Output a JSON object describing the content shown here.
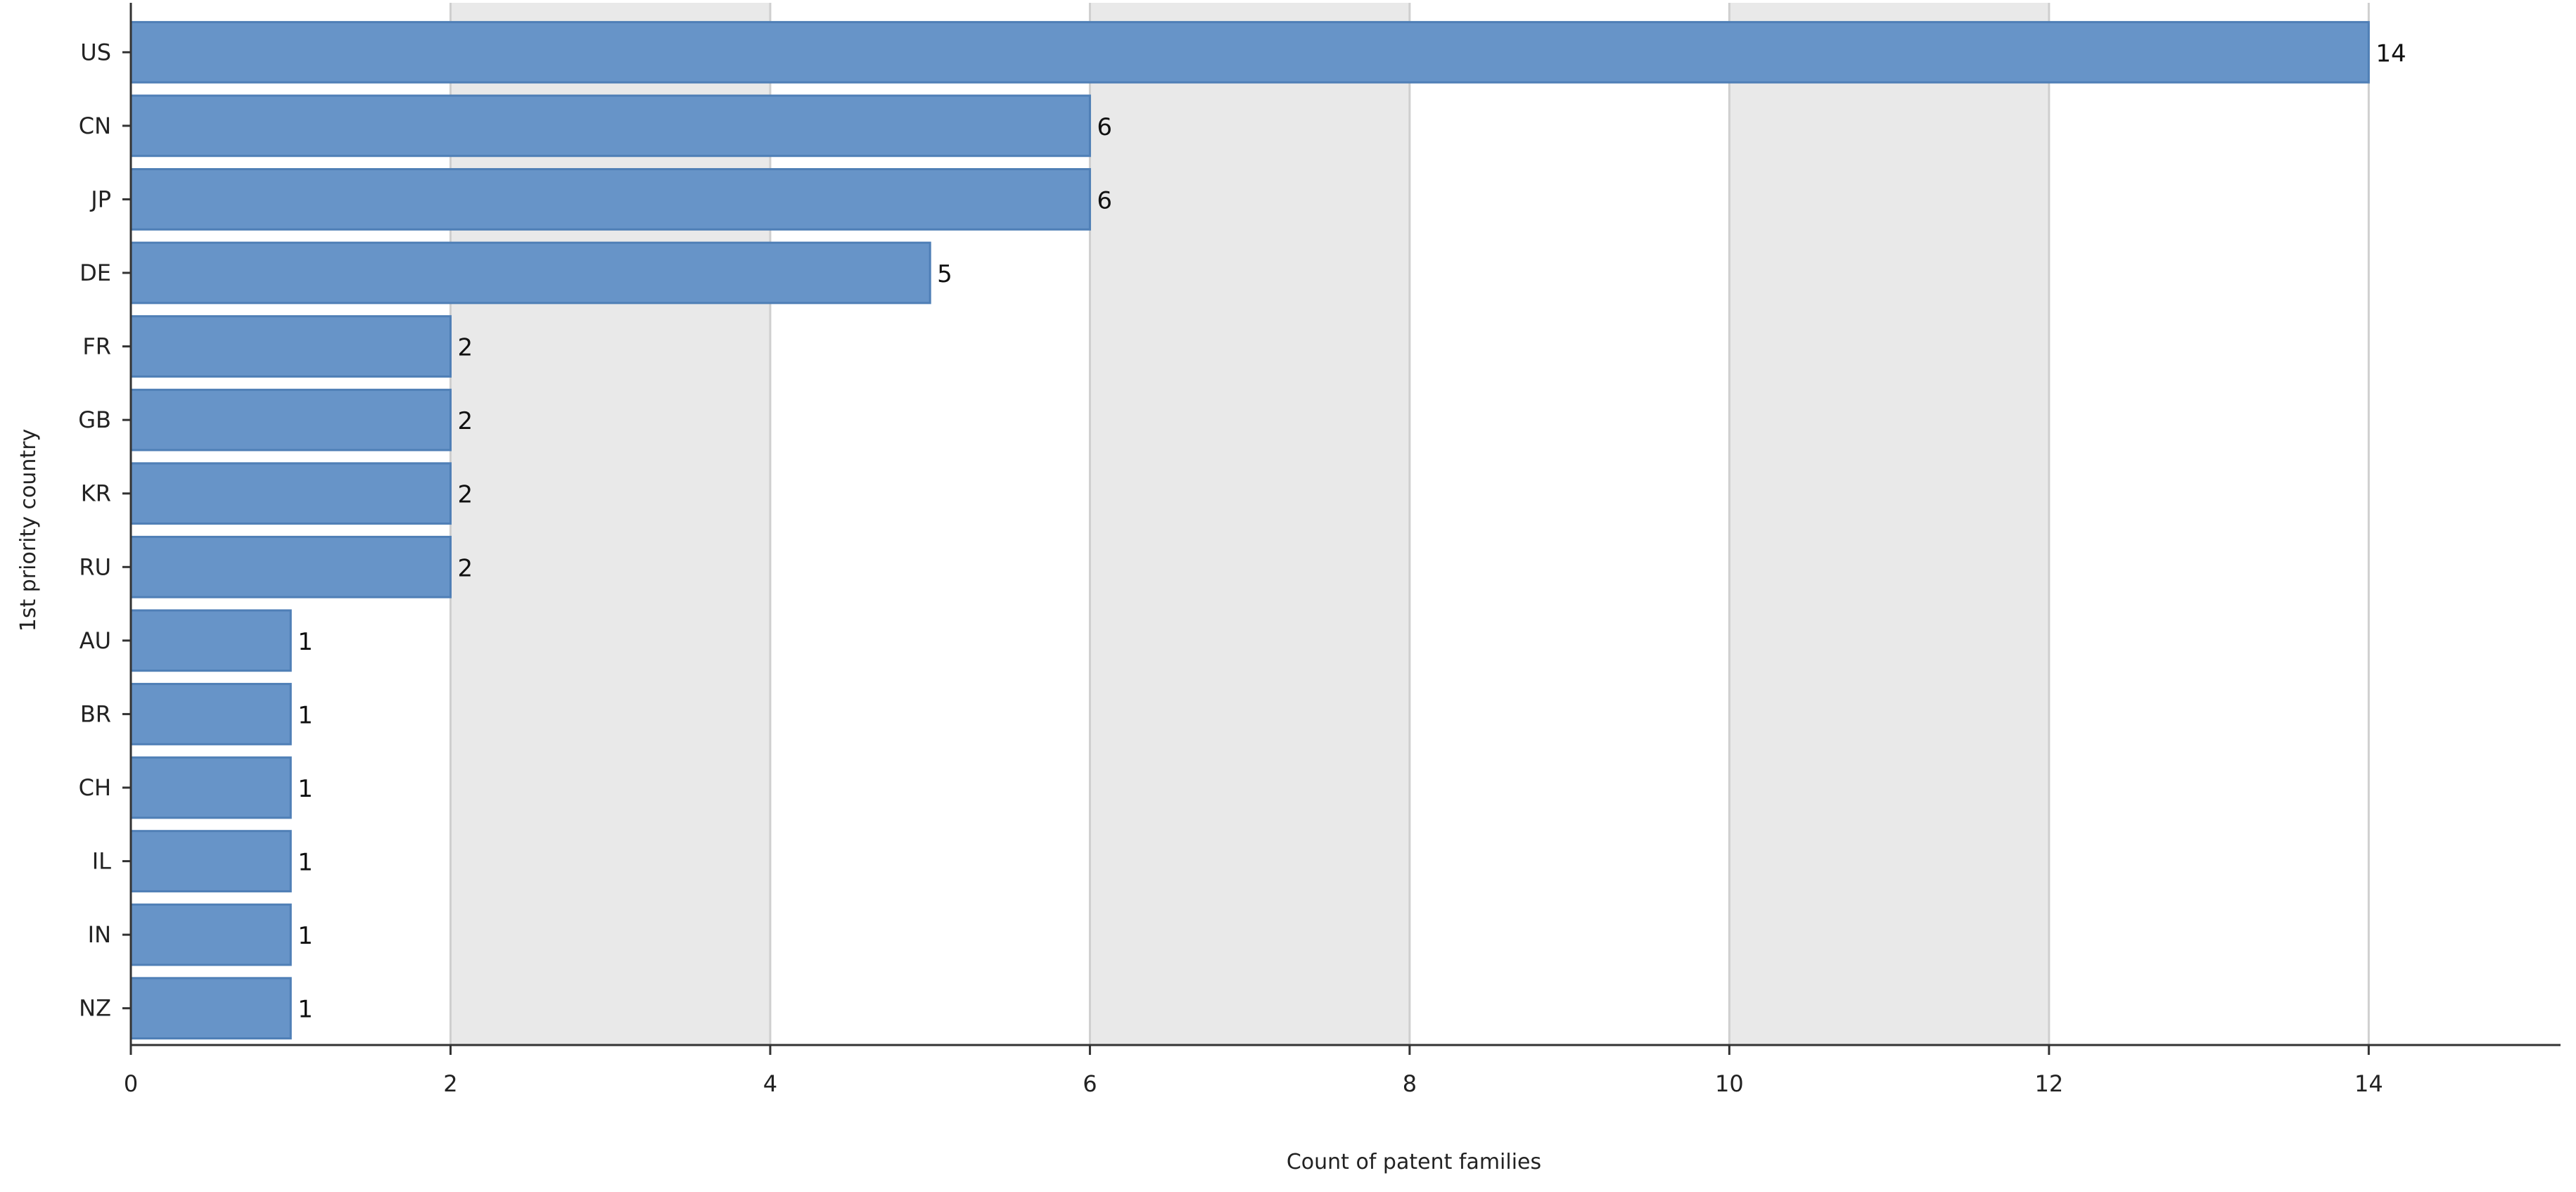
{
  "chart_data": {
    "type": "bar",
    "orientation": "horizontal",
    "categories": [
      "US",
      "CN",
      "JP",
      "DE",
      "FR",
      "GB",
      "KR",
      "RU",
      "AU",
      "BR",
      "CH",
      "IL",
      "IN",
      "NZ"
    ],
    "values": [
      14,
      6,
      6,
      5,
      2,
      2,
      2,
      2,
      1,
      1,
      1,
      1,
      1,
      1
    ],
    "xlabel": "Count of patent families",
    "ylabel": "1st priority country",
    "xlim": [
      0,
      15.2
    ],
    "xticks": [
      0,
      2,
      4,
      6,
      8,
      10,
      12,
      14
    ],
    "xtick_labels": [
      "0",
      "2",
      "4",
      "6",
      "8",
      "10",
      "12",
      "14"
    ],
    "data_labels": [
      "14",
      "6",
      "6",
      "5",
      "2",
      "2",
      "2",
      "2",
      "1",
      "1",
      "1",
      "1",
      "1",
      "1"
    ],
    "grid": true,
    "legend": "none",
    "colors": {
      "bar_fill": "#6794c8",
      "bar_stroke": "#4f7fb6",
      "band": "#e9e9e9"
    }
  }
}
